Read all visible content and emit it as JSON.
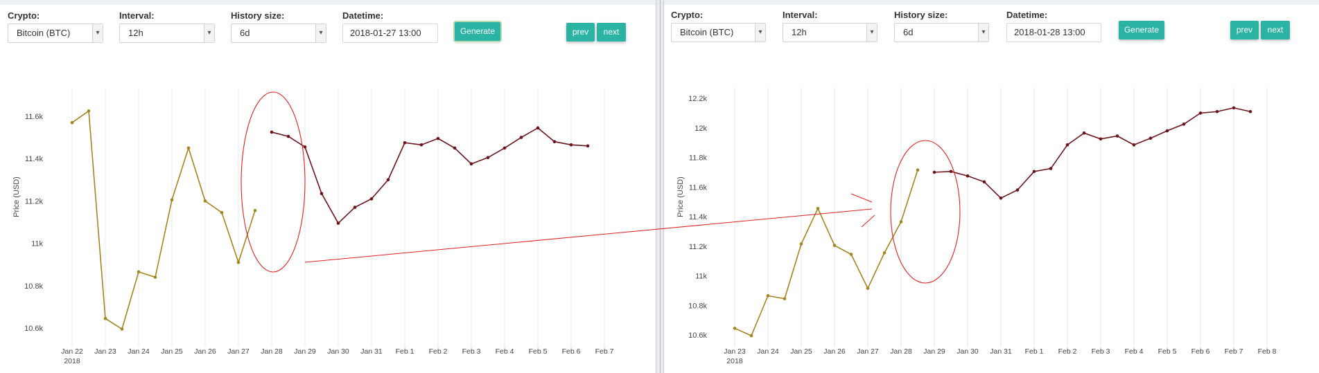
{
  "colors": {
    "history_series": "#a5841f",
    "forecast_series": "#6b1319",
    "annotation": "#e02020",
    "button": "#2bb3a4",
    "grid": "#e8e8e8"
  },
  "panels": [
    {
      "controls": {
        "crypto_label": "Crypto:",
        "crypto_value": "Bitcoin (BTC)",
        "interval_label": "Interval:",
        "interval_value": "12h",
        "history_label": "History size:",
        "history_value": "6d",
        "datetime_label": "Datetime:",
        "datetime_value": "2018-01-27 13:00",
        "generate_label": "Generate",
        "prev_label": "prev",
        "next_label": "next"
      }
    },
    {
      "controls": {
        "crypto_label": "Crypto:",
        "crypto_value": "Bitcoin (BTC)",
        "interval_label": "Interval:",
        "interval_value": "12h",
        "history_label": "History size:",
        "history_value": "6d",
        "datetime_label": "Datetime:",
        "datetime_value": "2018-01-28 13:00",
        "generate_label": "Generate",
        "prev_label": "prev",
        "next_label": "next"
      }
    }
  ],
  "chart_data": [
    {
      "type": "line",
      "ylabel": "Price (USD)",
      "ylim": [
        10500,
        11700
      ],
      "yticks": [
        10600,
        10800,
        11000,
        11200,
        11400,
        11600
      ],
      "ytick_labels": [
        "10.6k",
        "10.8k",
        "11k",
        "11.2k",
        "11.4k",
        "11.6k"
      ],
      "xlim": [
        "2018-01-22",
        "2018-02-07"
      ],
      "xticks": [
        "Jan 22",
        "Jan 23",
        "Jan 24",
        "Jan 25",
        "Jan 26",
        "Jan 27",
        "Jan 28",
        "Jan 29",
        "Jan 30",
        "Jan 31",
        "Feb 1",
        "Feb 2",
        "Feb 3",
        "Feb 4",
        "Feb 5",
        "Feb 6",
        "Feb 7"
      ],
      "xtick_year": "2018",
      "grid": "vertical",
      "series": [
        {
          "role": "history",
          "x": [
            "2018-01-22 00:00",
            "2018-01-22 12:00",
            "2018-01-23 00:00",
            "2018-01-23 12:00",
            "2018-01-24 00:00",
            "2018-01-24 12:00",
            "2018-01-25 00:00",
            "2018-01-25 12:00",
            "2018-01-26 00:00",
            "2018-01-26 12:00",
            "2018-01-27 00:00",
            "2018-01-27 12:00"
          ],
          "values": [
            11570,
            11625,
            10645,
            10595,
            10865,
            10840,
            11205,
            11450,
            11200,
            11145,
            10910,
            11155
          ]
        },
        {
          "role": "forecast",
          "x": [
            "2018-01-28 00:00",
            "2018-01-28 12:00",
            "2018-01-29 00:00",
            "2018-01-29 12:00",
            "2018-01-30 00:00",
            "2018-01-30 12:00",
            "2018-01-31 00:00",
            "2018-01-31 12:00",
            "2018-02-01 00:00",
            "2018-02-01 12:00",
            "2018-02-02 00:00",
            "2018-02-02 12:00",
            "2018-02-03 00:00",
            "2018-02-03 12:00",
            "2018-02-04 00:00",
            "2018-02-04 12:00",
            "2018-02-05 00:00",
            "2018-02-05 12:00",
            "2018-02-06 00:00",
            "2018-02-06 12:00"
          ],
          "values": [
            11525,
            11505,
            11455,
            11235,
            11095,
            11170,
            11210,
            11300,
            11475,
            11465,
            11495,
            11450,
            11375,
            11405,
            11450,
            11500,
            11545,
            11480,
            11465,
            11460
          ]
        }
      ]
    },
    {
      "type": "line",
      "ylabel": "Price (USD)",
      "ylim": [
        10530,
        12280
      ],
      "yticks": [
        10600,
        10800,
        11000,
        11200,
        11400,
        11600,
        11800,
        12000,
        12200
      ],
      "ytick_labels": [
        "10.6k",
        "10.8k",
        "11k",
        "11.2k",
        "11.4k",
        "11.6k",
        "11.8k",
        "12k",
        "12.2k"
      ],
      "xlim": [
        "2018-01-23",
        "2018-02-08"
      ],
      "xticks": [
        "Jan 23",
        "Jan 24",
        "Jan 25",
        "Jan 26",
        "Jan 27",
        "Jan 28",
        "Jan 29",
        "Jan 30",
        "Jan 31",
        "Feb 1",
        "Feb 2",
        "Feb 3",
        "Feb 4",
        "Feb 5",
        "Feb 6",
        "Feb 7",
        "Feb 8"
      ],
      "xtick_year": "2018",
      "grid": "vertical",
      "series": [
        {
          "role": "history",
          "x": [
            "2018-01-23 00:00",
            "2018-01-23 12:00",
            "2018-01-24 00:00",
            "2018-01-24 12:00",
            "2018-01-25 00:00",
            "2018-01-25 12:00",
            "2018-01-26 00:00",
            "2018-01-26 12:00",
            "2018-01-27 00:00",
            "2018-01-27 12:00",
            "2018-01-28 00:00",
            "2018-01-28 12:00"
          ],
          "values": [
            10645,
            10595,
            10865,
            10845,
            11215,
            11455,
            11205,
            11145,
            10915,
            11155,
            11365,
            11715
          ]
        },
        {
          "role": "forecast",
          "x": [
            "2018-01-29 00:00",
            "2018-01-29 12:00",
            "2018-01-30 00:00",
            "2018-01-30 12:00",
            "2018-01-31 00:00",
            "2018-01-31 12:00",
            "2018-02-01 00:00",
            "2018-02-01 12:00",
            "2018-02-02 00:00",
            "2018-02-02 12:00",
            "2018-02-03 00:00",
            "2018-02-03 12:00",
            "2018-02-04 00:00",
            "2018-02-04 12:00",
            "2018-02-05 00:00",
            "2018-02-05 12:00",
            "2018-02-06 00:00",
            "2018-02-06 12:00",
            "2018-02-07 00:00",
            "2018-02-07 12:00"
          ],
          "values": [
            11700,
            11705,
            11675,
            11635,
            11525,
            11580,
            11705,
            11725,
            11885,
            11965,
            11925,
            11945,
            11885,
            11930,
            11980,
            12025,
            12100,
            12110,
            12135,
            12110
          ]
        }
      ]
    }
  ]
}
